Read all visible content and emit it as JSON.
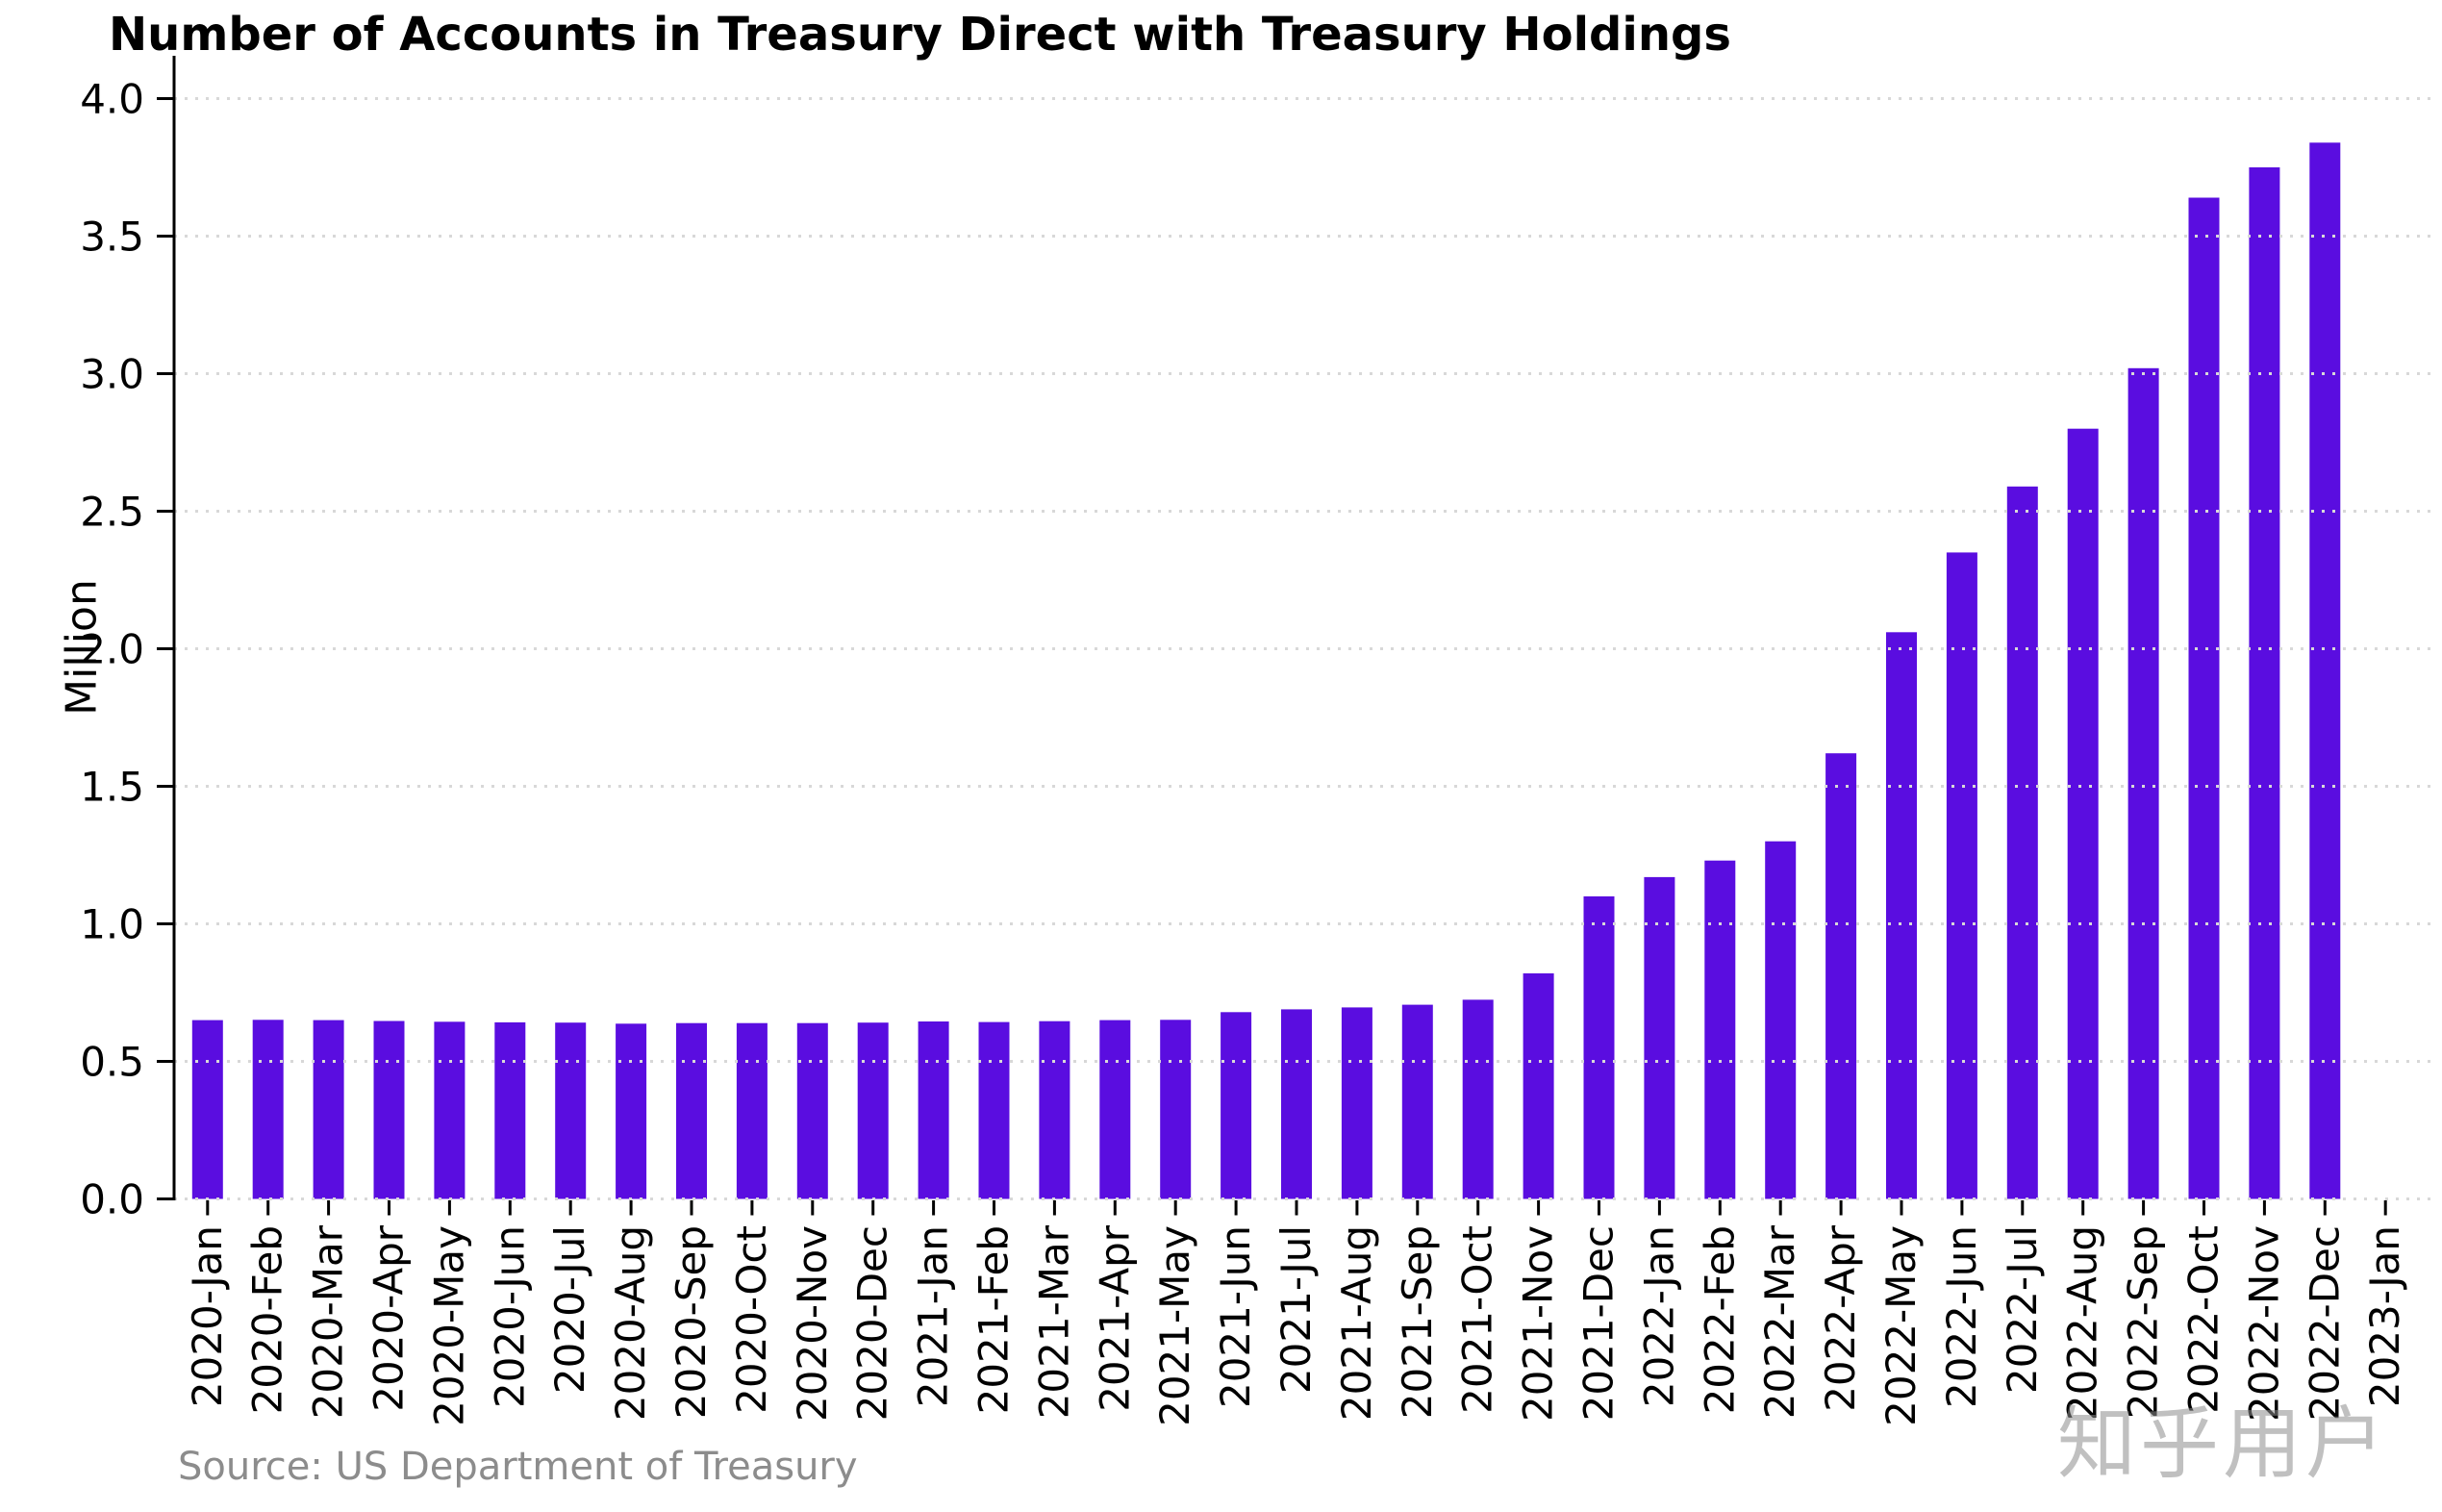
{
  "chart_data": {
    "type": "bar",
    "title": "Number of Accounts in Treasury Direct with Treasury Holdings",
    "ylabel": "Million",
    "xlabel": "",
    "categories": [
      "2020-Jan",
      "2020-Feb",
      "2020-Mar",
      "2020-Apr",
      "2020-May",
      "2020-Jun",
      "2020-Jul",
      "2020-Aug",
      "2020-Sep",
      "2020-Oct",
      "2020-Nov",
      "2020-Dec",
      "2021-Jan",
      "2021-Feb",
      "2021-Mar",
      "2021-Apr",
      "2021-May",
      "2021-Jun",
      "2021-Jul",
      "2021-Aug",
      "2021-Sep",
      "2021-Oct",
      "2021-Nov",
      "2021-Dec",
      "2022-Jan",
      "2022-Feb",
      "2022-Mar",
      "2022-Apr",
      "2022-May",
      "2022-Jun",
      "2022-Jul",
      "2022-Aug",
      "2022-Sep",
      "2022-Oct",
      "2022-Nov",
      "2022-Dec",
      "2023-Jan"
    ],
    "values": [
      0.65,
      0.651,
      0.65,
      0.647,
      0.644,
      0.642,
      0.641,
      0.637,
      0.639,
      0.639,
      0.639,
      0.641,
      0.645,
      0.643,
      0.646,
      0.65,
      0.651,
      0.679,
      0.689,
      0.696,
      0.706,
      0.724,
      0.82,
      1.1,
      1.17,
      1.23,
      1.3,
      1.62,
      2.06,
      2.35,
      2.59,
      2.8,
      3.02,
      3.64,
      3.75,
      3.84,
      null
    ],
    "y_ticks": [
      "0.0",
      "0.5",
      "1.0",
      "1.5",
      "2.0",
      "2.5",
      "3.0",
      "3.5",
      "4.0"
    ],
    "y_tick_step": 0.5,
    "ylim": [
      0,
      4.15
    ],
    "grid": "horizontal-dotted",
    "legend": "none",
    "bar_color": "#5A0DE0",
    "grid_color": "#D8D8D8",
    "axis_color": "#000000",
    "source": "Source: US Department of Treasury",
    "watermark": "知乎用户"
  }
}
